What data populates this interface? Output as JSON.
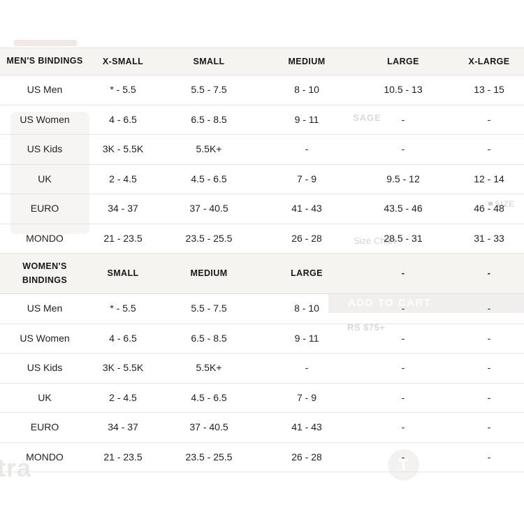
{
  "colors": {
    "page_bg": "#ffffff",
    "header_bg": "#f5f4f1",
    "row_border": "#e7e5e2",
    "text": "#1f1f1f",
    "ghost_text": "#dcd9d5",
    "ghost_band": "#f0efed"
  },
  "tables": [
    {
      "name": "mens-bindings",
      "header": [
        "MEN'S BINDINGS",
        "X-SMALL",
        "SMALL",
        "MEDIUM",
        "LARGE",
        "X-LARGE"
      ],
      "rows": [
        [
          "US Men",
          "* - 5.5",
          "5.5 - 7.5",
          "8 - 10",
          "10.5 - 13",
          "13 - 15"
        ],
        [
          "US Women",
          "4 - 6.5",
          "6.5 - 8.5",
          "9 - 11",
          "-",
          "-"
        ],
        [
          "US Kids",
          "3K - 5.5K",
          "5.5K+",
          "-",
          "-",
          "-"
        ],
        [
          "UK",
          "2 - 4.5",
          "4.5 - 6.5",
          "7 - 9",
          "9.5 - 12",
          "12 - 14"
        ],
        [
          "EURO",
          "34 - 37",
          "37 - 40.5",
          "41 - 43",
          "43.5 - 46",
          "46 - 48"
        ],
        [
          "MONDO",
          "21 - 23.5",
          "23.5 - 25.5",
          "26 - 28",
          "28.5 - 31",
          "31 - 33"
        ]
      ]
    },
    {
      "name": "womens-bindings",
      "header": [
        "WOMEN'S BINDINGS",
        "SMALL",
        "MEDIUM",
        "LARGE",
        "-",
        "-"
      ],
      "rows": [
        [
          "US Men",
          "* - 5.5",
          "5.5 - 7.5",
          "8 - 10",
          "-",
          "-"
        ],
        [
          "US Women",
          "4 - 6.5",
          "6.5 - 8.5",
          "9 - 11",
          "-",
          "-"
        ],
        [
          "US Kids",
          "3K - 5.5K",
          "5.5K+",
          "-",
          "-",
          "-"
        ],
        [
          "UK",
          "2 - 4.5",
          "4.5 - 6.5",
          "7 - 9",
          "-",
          "-"
        ],
        [
          "EURO",
          "34 - 37",
          "37 - 40.5",
          "41 - 43",
          "-",
          "-"
        ],
        [
          "MONDO",
          "21 - 23.5",
          "23.5 - 25.5",
          "26 - 28",
          "-",
          "-"
        ]
      ]
    }
  ],
  "background_artifacts": {
    "sage": "SAGE",
    "size": "SIZE",
    "size_chart": "Size Chart",
    "add_to_cart": "ADD TO CART",
    "shipping": "RS $75+",
    "badge_letter": "T",
    "watermark": "tra"
  }
}
